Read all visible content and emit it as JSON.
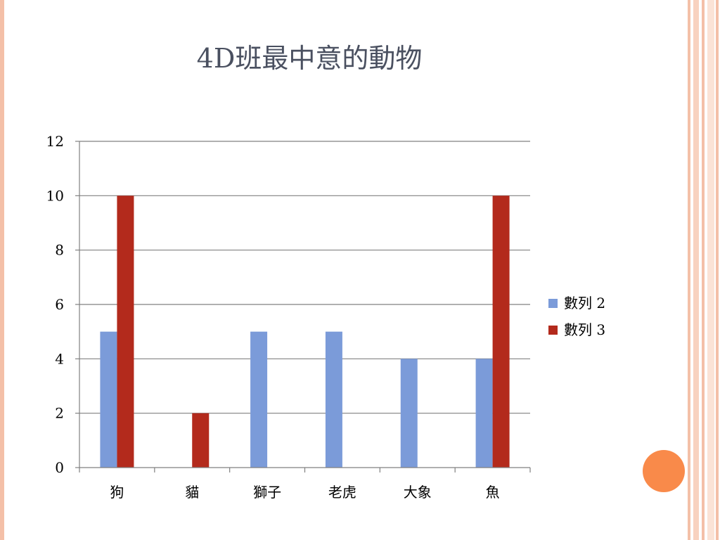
{
  "slide": {
    "title": "4D班最中意的動物"
  },
  "colors": {
    "series_2": "#7b9bd9",
    "series_3": "#b32a1c",
    "grid": "#808080",
    "accent_circle": "#f98a4a",
    "border_peach": "#f4c0a8"
  },
  "chart_data": {
    "type": "bar",
    "title": "4D班最中意的動物",
    "categories": [
      "狗",
      "貓",
      "獅子",
      "老虎",
      "大象",
      "魚"
    ],
    "series": [
      {
        "name": "數列 2",
        "values": [
          5,
          0,
          5,
          5,
          4,
          4
        ]
      },
      {
        "name": "數列 3",
        "values": [
          10,
          2,
          0,
          0,
          0,
          10
        ]
      }
    ],
    "ylim": [
      0,
      12
    ],
    "yticks": [
      0,
      2,
      4,
      6,
      8,
      10,
      12
    ],
    "grid": true,
    "legend_position": "right"
  }
}
